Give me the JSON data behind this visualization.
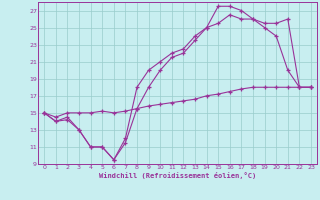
{
  "xlabel": "Windchill (Refroidissement éolien,°C)",
  "bg_color": "#c8eef0",
  "line_color": "#993399",
  "grid_color": "#99cccc",
  "ylim": [
    9,
    28
  ],
  "xlim": [
    -0.5,
    23.5
  ],
  "yticks": [
    9,
    11,
    13,
    15,
    17,
    19,
    21,
    23,
    25,
    27
  ],
  "xticks": [
    0,
    1,
    2,
    3,
    4,
    5,
    6,
    7,
    8,
    9,
    10,
    11,
    12,
    13,
    14,
    15,
    16,
    17,
    18,
    19,
    20,
    21,
    22,
    23
  ],
  "line1_x": [
    0,
    1,
    2,
    3,
    4,
    5,
    6,
    7,
    8,
    9,
    10,
    11,
    12,
    13,
    14,
    15,
    16,
    17,
    18,
    19,
    20,
    21,
    22,
    23
  ],
  "line1_y": [
    15,
    14,
    14.5,
    13,
    11,
    11,
    9.5,
    12,
    18,
    20,
    21,
    22,
    22.5,
    24,
    25,
    27.5,
    27.5,
    27,
    26,
    25,
    24,
    20,
    18,
    18
  ],
  "line2_x": [
    0,
    1,
    2,
    3,
    4,
    5,
    6,
    7,
    8,
    9,
    10,
    11,
    12,
    13,
    14,
    15,
    16,
    17,
    18,
    19,
    20,
    21,
    22,
    23
  ],
  "line2_y": [
    15,
    14,
    14.2,
    13,
    11,
    11,
    9.5,
    11.5,
    15.5,
    18,
    20,
    21.5,
    22,
    23.5,
    25,
    25.5,
    26.5,
    26,
    26,
    25.5,
    25.5,
    26,
    18,
    18
  ],
  "line3_x": [
    0,
    1,
    2,
    3,
    4,
    5,
    6,
    7,
    8,
    9,
    10,
    11,
    12,
    13,
    14,
    15,
    16,
    17,
    18,
    19,
    20,
    21,
    22,
    23
  ],
  "line3_y": [
    15,
    14.5,
    15,
    15,
    15,
    15.2,
    15,
    15.2,
    15.5,
    15.8,
    16,
    16.2,
    16.4,
    16.6,
    17,
    17.2,
    17.5,
    17.8,
    18,
    18,
    18,
    18,
    18,
    18
  ]
}
